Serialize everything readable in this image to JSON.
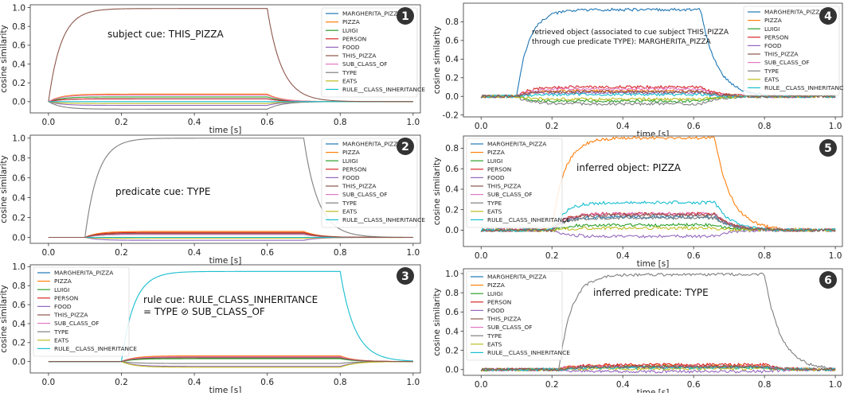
{
  "legend_labels": [
    "MARGHERITA_PIZZA",
    "PIZZA",
    "LUIGI",
    "PERSON",
    "FOOD",
    "THIS_PIZZA",
    "SUB_CLASS_OF",
    "TYPE",
    "EATS",
    "RULE__CLASS_INHERITANCE"
  ],
  "colors": [
    "#1f77b4",
    "#ff7f0e",
    "#2ca02c",
    "#d62728",
    "#9467bd",
    "#8c564b",
    "#e377c2",
    "#7f7f7f",
    "#bcbd22",
    "#17becf"
  ],
  "xlabel": "time [s]",
  "ylabel": "cosine similarity",
  "chart_data": [
    {
      "type": "line",
      "panel": "1",
      "annotation": [
        "subject cue: THIS_PIZZA"
      ],
      "xlabel": "time [s]",
      "ylabel": "cosine similarity",
      "xlim": [
        -0.05,
        1.02
      ],
      "ylim": [
        -0.12,
        1.03
      ],
      "xticks": [
        "0.0",
        "0.2",
        "0.4",
        "0.6",
        "0.8",
        "1.0"
      ],
      "yticks": [
        "0.0",
        "0.2",
        "0.4",
        "0.6",
        "0.8",
        "1.0"
      ],
      "grid": false,
      "legend": "top-right",
      "noise": false,
      "onset": 0.0,
      "offset": 0.6,
      "tau_rise": 0.035,
      "tau_decay": 0.04,
      "plateau": [
        0.03,
        0.08,
        0.05,
        0.03,
        -0.04,
        0.99,
        0.07,
        -0.08,
        -0.02,
        0.0
      ]
    },
    {
      "type": "line",
      "panel": "2",
      "annotation": [
        "predicate cue: TYPE"
      ],
      "xlabel": "time [s]",
      "ylabel": "cosine similarity",
      "xlim": [
        -0.05,
        1.02
      ],
      "ylim": [
        -0.06,
        1.03
      ],
      "xticks": [
        "0.0",
        "0.2",
        "0.4",
        "0.6",
        "0.8",
        "1.0"
      ],
      "yticks": [
        "0.0",
        "0.2",
        "0.4",
        "0.6",
        "0.8",
        "1.0"
      ],
      "grid": false,
      "legend": "top-right",
      "noise": false,
      "onset": 0.1,
      "offset": 0.7,
      "tau_rise": 0.035,
      "tau_decay": 0.04,
      "plateau": [
        0.04,
        0.06,
        0.03,
        0.05,
        -0.03,
        0.04,
        0.03,
        1.0,
        -0.01,
        0.0
      ]
    },
    {
      "type": "line",
      "panel": "3",
      "annotation": [
        "rule cue: RULE_CLASS_INHERITANCE",
        "= TYPE ⊘ SUB_CLASS_OF"
      ],
      "xlabel": "time [s]",
      "ylabel": "cosine similarity",
      "xlim": [
        -0.05,
        1.02
      ],
      "ylim": [
        -0.12,
        1.02
      ],
      "xticks": [
        "0.0",
        "0.2",
        "0.4",
        "0.6",
        "0.8",
        "1.0"
      ],
      "yticks": [
        "0.0",
        "0.2",
        "0.4",
        "0.6",
        "0.8",
        "1.0"
      ],
      "grid": false,
      "legend": "top-left",
      "noise": false,
      "onset": 0.2,
      "offset": 0.8,
      "tau_rise": 0.035,
      "tau_decay": 0.04,
      "plateau": [
        0.04,
        0.06,
        0.03,
        0.05,
        -0.05,
        0.04,
        0.05,
        -0.02,
        -0.06,
        0.95
      ]
    },
    {
      "type": "line",
      "panel": "4",
      "annotation": [
        "retrieved object (associated to cue subject THIS_PIZZA",
        "through  cue predicate TYPE): MARGHERITA_PIZZA"
      ],
      "xlabel": "time [s]",
      "ylabel": "cosine similarity",
      "xlim": [
        -0.05,
        1.02
      ],
      "ylim": [
        -0.22,
        1.0
      ],
      "xticks": [
        "0.0",
        "0.2",
        "0.4",
        "0.6",
        "0.8",
        "1.0"
      ],
      "yticks": [
        "-0.2",
        "0.0",
        "0.2",
        "0.4",
        "0.6",
        "0.8"
      ],
      "grid": false,
      "legend": "top-right",
      "noise": true,
      "onset": 0.1,
      "offset": 0.62,
      "tau_rise": 0.035,
      "tau_decay": 0.045,
      "plateau": [
        0.93,
        0.06,
        -0.05,
        0.1,
        0.04,
        0.05,
        0.08,
        -0.08,
        -0.03,
        0.02
      ]
    },
    {
      "type": "line",
      "panel": "5",
      "annotation": [
        "inferred object: PIZZA"
      ],
      "xlabel": "time [s]",
      "ylabel": "cosine similarity",
      "xlim": [
        -0.05,
        1.02
      ],
      "ylim": [
        -0.16,
        0.92
      ],
      "xticks": [
        "0.0",
        "0.2",
        "0.4",
        "0.6",
        "0.8",
        "1.0"
      ],
      "yticks": [
        "0.0",
        "0.2",
        "0.4",
        "0.6",
        "0.8"
      ],
      "grid": false,
      "legend": "top-left",
      "noise": true,
      "onset": 0.2,
      "offset": 0.66,
      "tau_rise": 0.035,
      "tau_decay": 0.045,
      "plateau": [
        0.13,
        0.9,
        0.05,
        0.16,
        -0.06,
        0.15,
        0.16,
        0.12,
        0.02,
        0.27
      ]
    },
    {
      "type": "line",
      "panel": "6",
      "annotation": [
        "inferred predicate: TYPE"
      ],
      "xlabel": "time [s]",
      "ylabel": "cosine similarity",
      "xlim": [
        -0.05,
        1.02
      ],
      "ylim": [
        -0.06,
        1.05
      ],
      "xticks": [
        "0.0",
        "0.2",
        "0.4",
        "0.6",
        "0.8",
        "1.0"
      ],
      "yticks": [
        "0.0",
        "0.2",
        "0.4",
        "0.6",
        "0.8",
        "1.0"
      ],
      "grid": false,
      "legend": "top-left",
      "noise": true,
      "onset": 0.22,
      "offset": 0.8,
      "tau_rise": 0.035,
      "tau_decay": 0.045,
      "plateau": [
        0.03,
        0.04,
        0.03,
        0.05,
        -0.02,
        0.03,
        0.03,
        0.99,
        0.01,
        0.02
      ]
    }
  ]
}
